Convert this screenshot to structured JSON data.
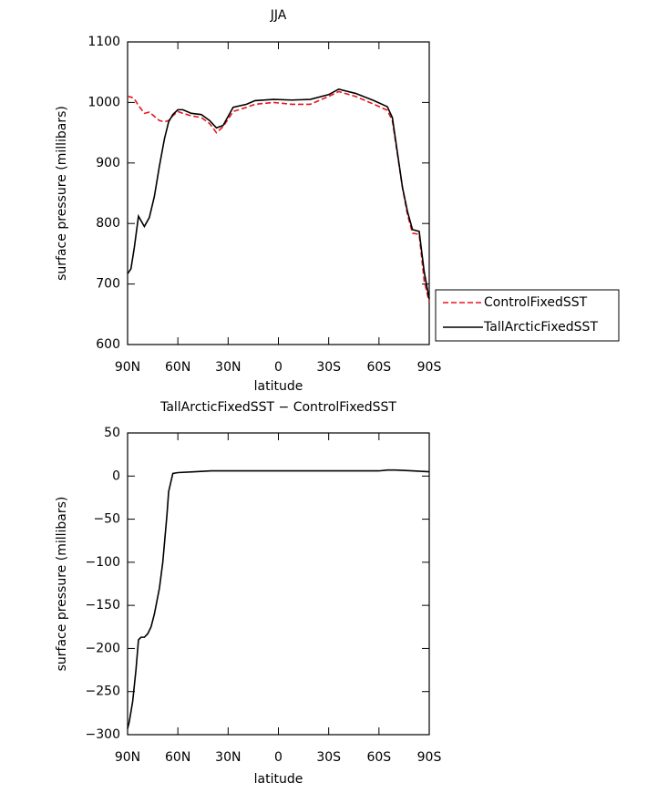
{
  "chart_data": [
    {
      "type": "line",
      "title": "JJA",
      "xlabel": "latitude",
      "ylabel": "surface pressure (millibars)",
      "x": [
        90,
        88,
        86,
        83.5,
        80,
        77,
        74,
        71,
        68,
        65.5,
        63,
        60,
        57,
        52,
        46,
        41,
        37,
        33,
        27,
        19,
        14,
        3,
        -8,
        -19,
        -30,
        -36,
        -46,
        -57,
        -65,
        -68,
        -74,
        -77,
        -80,
        -84,
        -87,
        -90
      ],
      "series": [
        {
          "name": "ControlFixedSST",
          "color": "#e8141c",
          "dash": true,
          "values": [
            1010,
            1009,
            1006,
            995,
            982,
            984,
            977,
            970,
            968,
            970,
            978,
            985,
            982,
            978,
            975,
            965,
            950,
            960,
            985,
            992,
            997,
            1000,
            997,
            997,
            1010,
            1018,
            1010,
            997,
            987,
            970,
            860,
            815,
            784,
            782,
            705,
            670
          ]
        },
        {
          "name": "TallArcticFixedSST",
          "color": "#000000",
          "dash": false,
          "values": [
            717,
            725,
            760,
            812,
            795,
            810,
            845,
            895,
            940,
            968,
            980,
            988,
            988,
            982,
            980,
            970,
            958,
            962,
            992,
            997,
            1003,
            1005,
            1004,
            1005,
            1013,
            1022,
            1015,
            1003,
            993,
            975,
            860,
            820,
            790,
            787,
            720,
            675
          ]
        }
      ],
      "xlim": [
        90,
        -90
      ],
      "xticks": [
        {
          "value": 90,
          "label": "90N"
        },
        {
          "value": 60,
          "label": "60N"
        },
        {
          "value": 30,
          "label": "30N"
        },
        0,
        {
          "value": -30,
          "label": "30S"
        },
        {
          "value": -60,
          "label": "60S"
        },
        {
          "value": -90,
          "label": "90S"
        }
      ],
      "ylim": [
        600,
        1100
      ],
      "yticks": [
        600,
        700,
        800,
        900,
        1000,
        1100
      ],
      "legend": "right"
    },
    {
      "type": "line",
      "title": "TallArcticFixedSST − ControlFixedSST",
      "xlabel": "latitude",
      "ylabel": "surface pressure (millibars)",
      "x": [
        90,
        89,
        87,
        85,
        83.5,
        82,
        80,
        78,
        76,
        74,
        71,
        69,
        66.5,
        65.5,
        63,
        60,
        50,
        40,
        30,
        20,
        10,
        0,
        -10,
        -20,
        -30,
        -40,
        -50,
        -60,
        -65,
        -70,
        -80,
        -90
      ],
      "series": [
        {
          "name": null,
          "color": "#000000",
          "dash": false,
          "values": [
            -293,
            -285,
            -262,
            -225,
            -190,
            -187,
            -187,
            -183,
            -175,
            -160,
            -130,
            -100,
            -45,
            -18,
            3,
            4,
            5,
            6,
            6,
            6,
            6,
            6,
            6,
            6,
            6,
            6,
            6,
            6,
            7,
            7,
            6,
            5
          ]
        }
      ],
      "xlim": [
        90,
        -90
      ],
      "xticks": [
        {
          "value": 90,
          "label": "90N"
        },
        {
          "value": 60,
          "label": "60N"
        },
        {
          "value": 30,
          "label": "30N"
        },
        0,
        {
          "value": -30,
          "label": "30S"
        },
        {
          "value": -60,
          "label": "60S"
        },
        {
          "value": -90,
          "label": "90S"
        }
      ],
      "ylim": [
        -300,
        50
      ],
      "yticks": [
        {
          "value": -300,
          "label": "−300"
        },
        {
          "value": -250,
          "label": "−250"
        },
        {
          "value": -200,
          "label": "−200"
        },
        {
          "value": -150,
          "label": "−150"
        },
        {
          "value": -100,
          "label": "−100"
        },
        {
          "value": -50,
          "label": "−50"
        },
        0,
        50
      ]
    }
  ]
}
